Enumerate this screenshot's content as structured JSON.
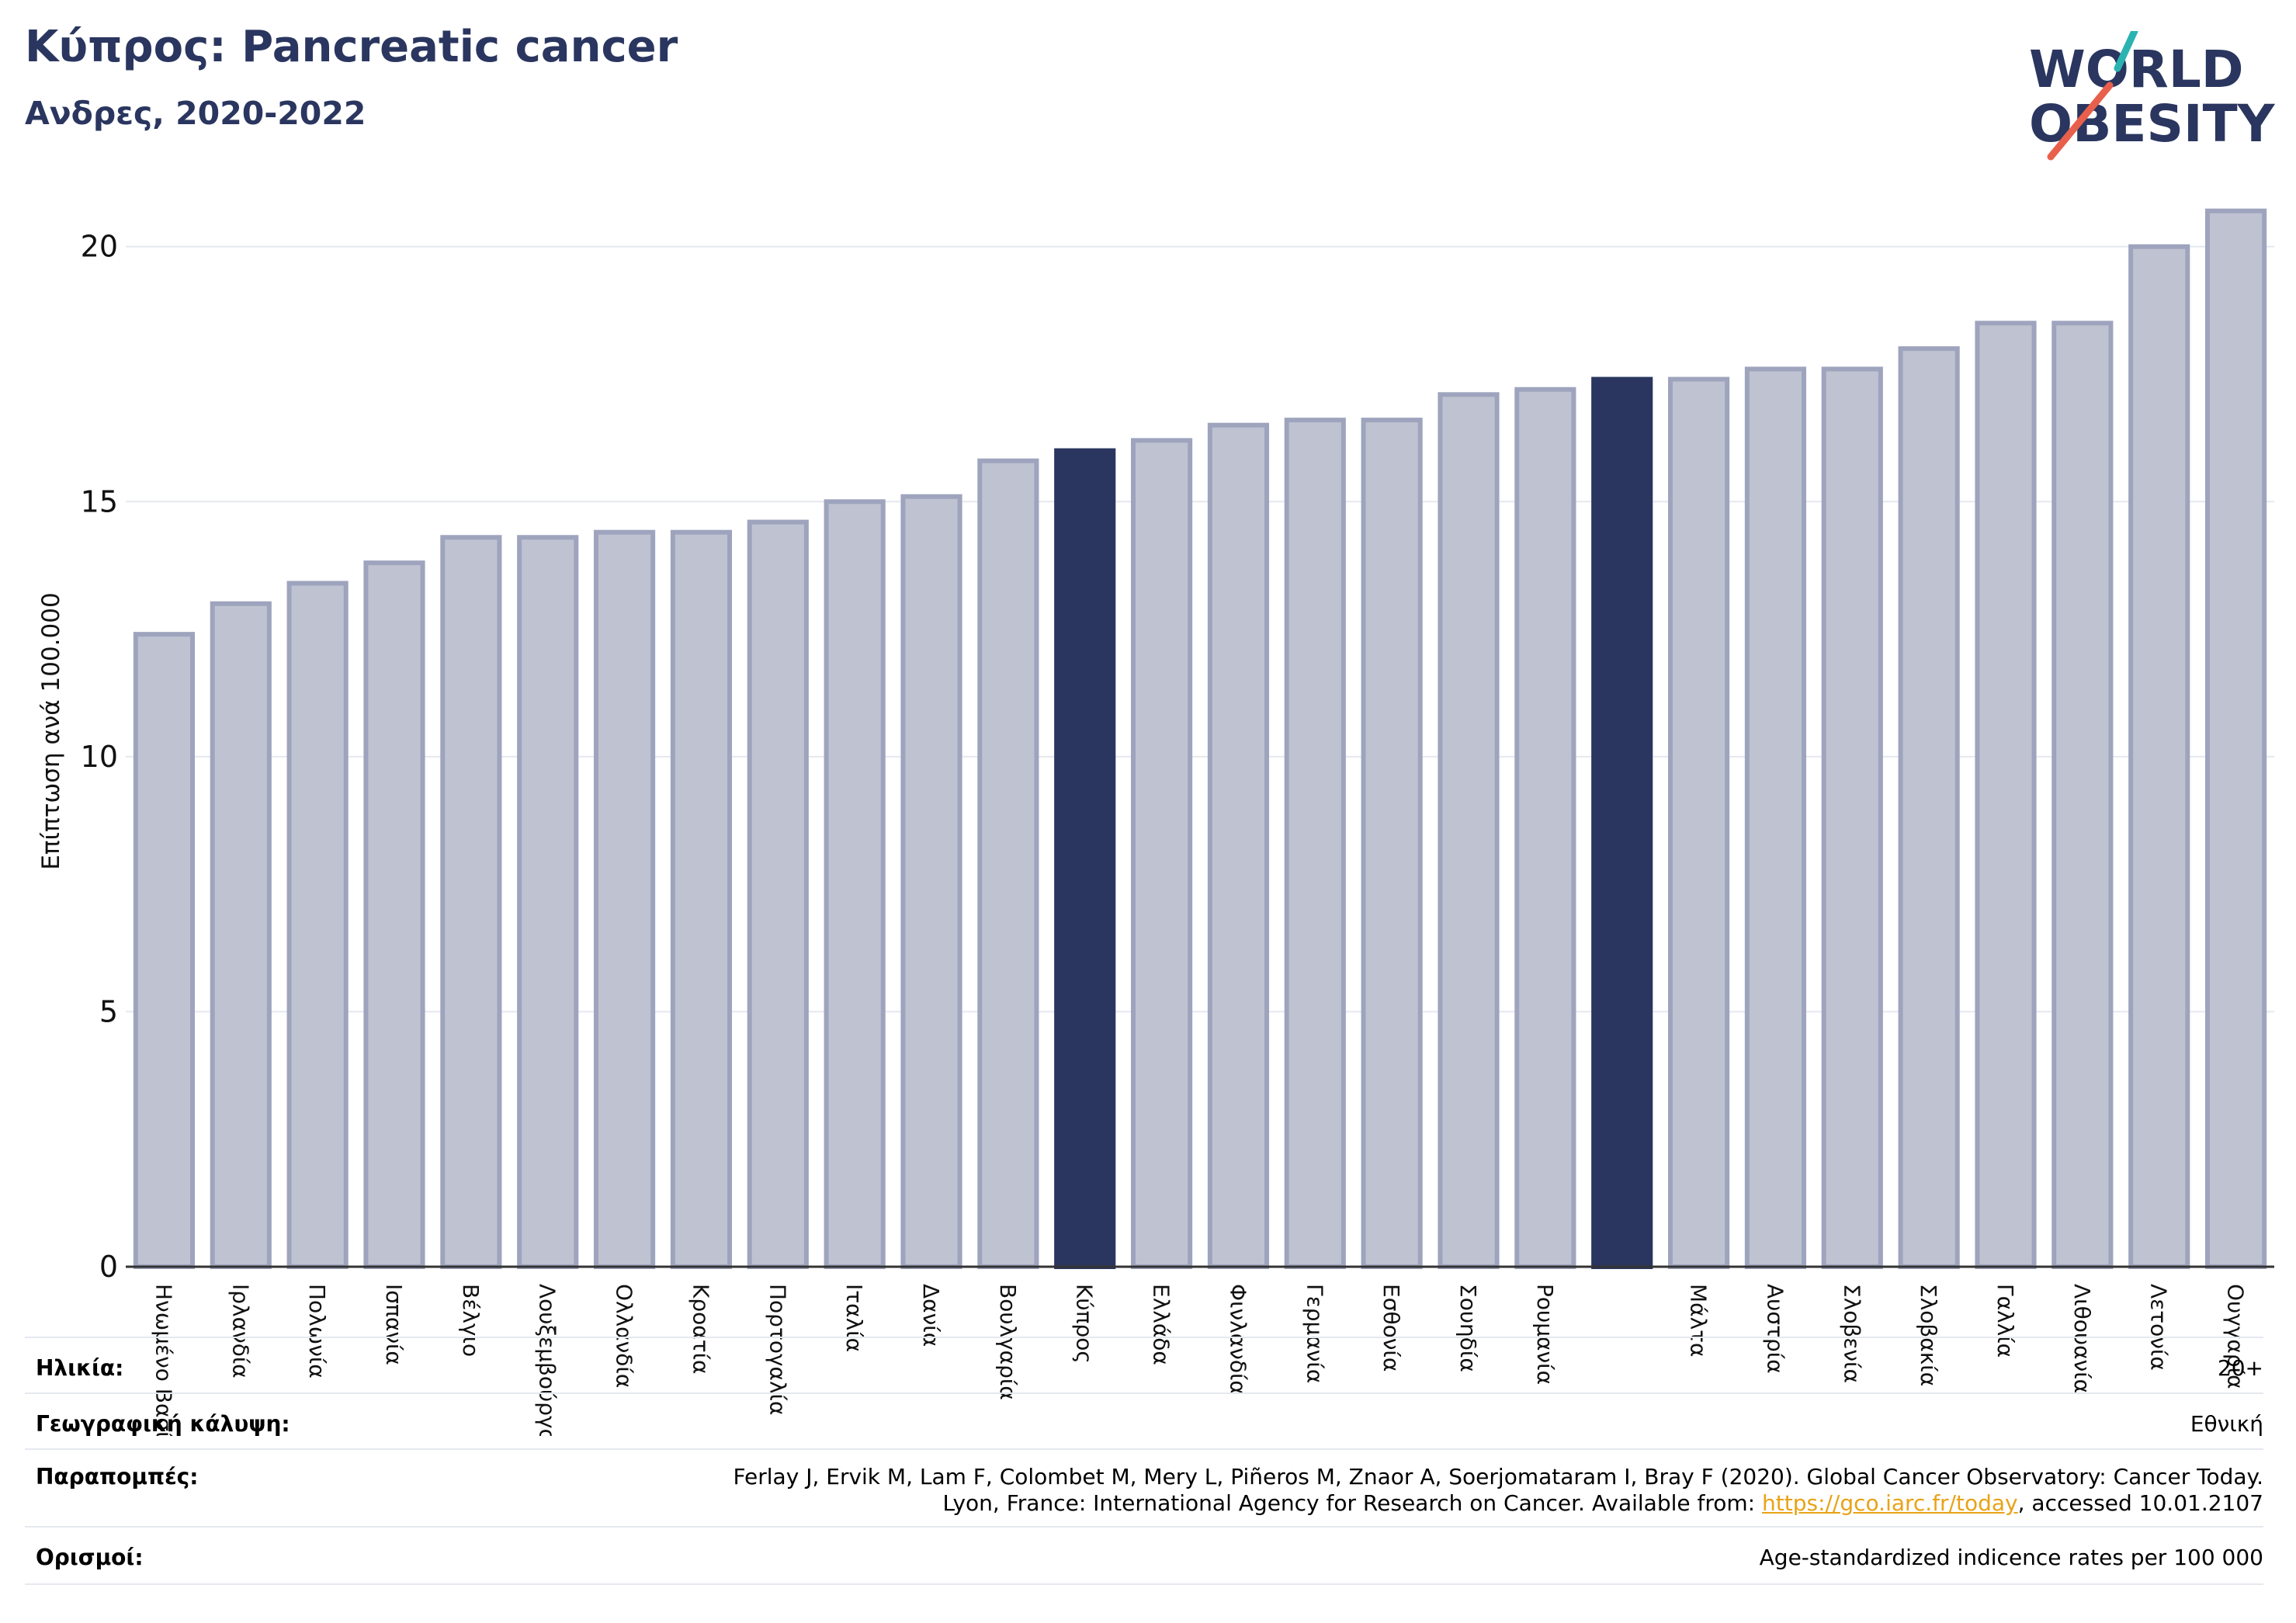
{
  "header": {
    "title": "Κύπρος: Pancreatic cancer",
    "subtitle": "Ανδρες, 2020-2022"
  },
  "logo": {
    "line1": "WORLD",
    "line2": "OBESITY",
    "accent_teal": "#2bb3b1",
    "accent_red": "#e8604c",
    "text_color": "#2a365f"
  },
  "colors": {
    "bar": "#bfc3d1",
    "bar_border": "#9ea4bd",
    "highlight": "#2a365f",
    "grid": "#e6e8f0",
    "axis": "#333333"
  },
  "chart_data": {
    "type": "bar",
    "ylabel": "Επίπτωση ανά 100.000",
    "ylim": [
      0,
      21
    ],
    "yticks": [
      0,
      5,
      10,
      15,
      20
    ],
    "grid": true,
    "categories": [
      "Ηνωμένο Βασίλειο",
      "Ιρλανδία",
      "Πολωνία",
      "Ισπανία",
      "Βέλγιο",
      "Λουξεμβούργο",
      "Ολλανδία",
      "Κροατία",
      "Πορτογαλία",
      "Ιταλία",
      "Δανία",
      "Βουλγαρία",
      "Κύπρος",
      "Ελλάδα",
      "Φινλανδία",
      "Γερμανία",
      "Εσθονία",
      "Σουηδία",
      "Ρουμανία",
      "",
      "Μάλτα",
      "Αυστρία",
      "Σλοβενία",
      "Σλοβακία",
      "Γαλλία",
      "Λιθουανία",
      "Λετονία",
      "Ουγγαρία"
    ],
    "values": [
      12.4,
      13.0,
      13.4,
      13.8,
      14.3,
      14.3,
      14.4,
      14.4,
      14.6,
      15.0,
      15.1,
      15.8,
      16.0,
      16.2,
      16.5,
      16.6,
      16.6,
      17.1,
      17.2,
      17.4,
      17.4,
      17.6,
      17.6,
      18.0,
      18.5,
      18.5,
      20.0,
      20.7
    ],
    "highlighted": [
      12,
      19
    ]
  },
  "footer": {
    "age_label": "Ηλικία:",
    "age_value": "20+",
    "coverage_label": "Γεωγραφική κάλυψη:",
    "coverage_value": "Εθνική",
    "refs_label": "Παραπομπές:",
    "refs_line1": "Ferlay J, Ervik M, Lam F, Colombet M, Mery L, Piñeros M, Znaor A, Soerjomataram I, Bray F (2020). Global Cancer Observatory: Cancer Today.",
    "refs_line2_pre": "Lyon, France: International Agency for Research on Cancer. Available from: ",
    "refs_link": "https://gco.iarc.fr/today",
    "refs_line2_post": ", accessed 10.01.2107",
    "defs_label": "Ορισμοί:",
    "defs_value": "Age-standardized indicence rates per 100 000"
  }
}
